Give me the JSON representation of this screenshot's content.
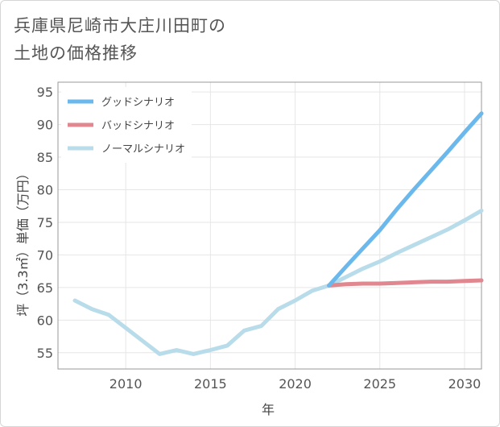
{
  "page": {
    "title_line1": "兵庫県尼崎市大庄川田町の",
    "title_line2": "土地の価格推移"
  },
  "chart_data": {
    "type": "line",
    "xlabel": "年",
    "ylabel": "坪（3.3㎡）単価（万円）",
    "xlim": [
      2006,
      2031
    ],
    "ylim": [
      52.5,
      96.5
    ],
    "x_ticks": [
      2010,
      2015,
      2020,
      2025,
      2030
    ],
    "y_ticks": [
      55,
      60,
      65,
      70,
      75,
      80,
      85,
      90,
      95
    ],
    "grid": true,
    "legend_position": "top-left",
    "series": [
      {
        "name": "グッドシナリオ",
        "color": "#6bb8ec",
        "x": [
          2022,
          2023,
          2024,
          2025,
          2026,
          2027,
          2028,
          2029,
          2030,
          2031
        ],
        "values": [
          65.3,
          68.2,
          71.0,
          73.8,
          77.0,
          80.0,
          82.9,
          85.8,
          88.8,
          91.7
        ]
      },
      {
        "name": "バッドシナリオ",
        "color": "#e0878f",
        "x": [
          2022,
          2023,
          2024,
          2025,
          2026,
          2027,
          2028,
          2029,
          2030,
          2031
        ],
        "values": [
          65.3,
          65.5,
          65.6,
          65.6,
          65.7,
          65.8,
          65.9,
          65.9,
          66.0,
          66.1
        ]
      },
      {
        "name": "ノーマルシナリオ",
        "color": "#b9dcea",
        "x": [
          2007,
          2008,
          2009,
          2010,
          2011,
          2012,
          2013,
          2014,
          2015,
          2016,
          2017,
          2018,
          2019,
          2020,
          2021,
          2022,
          2023,
          2024,
          2025,
          2026,
          2027,
          2028,
          2029,
          2030,
          2031
        ],
        "values": [
          63.0,
          61.7,
          60.8,
          58.8,
          56.8,
          54.8,
          55.4,
          54.8,
          55.4,
          56.1,
          58.4,
          59.1,
          61.7,
          63.0,
          64.5,
          65.3,
          66.6,
          67.9,
          69.0,
          70.3,
          71.5,
          72.7,
          73.9,
          75.3,
          76.8
        ]
      }
    ]
  }
}
